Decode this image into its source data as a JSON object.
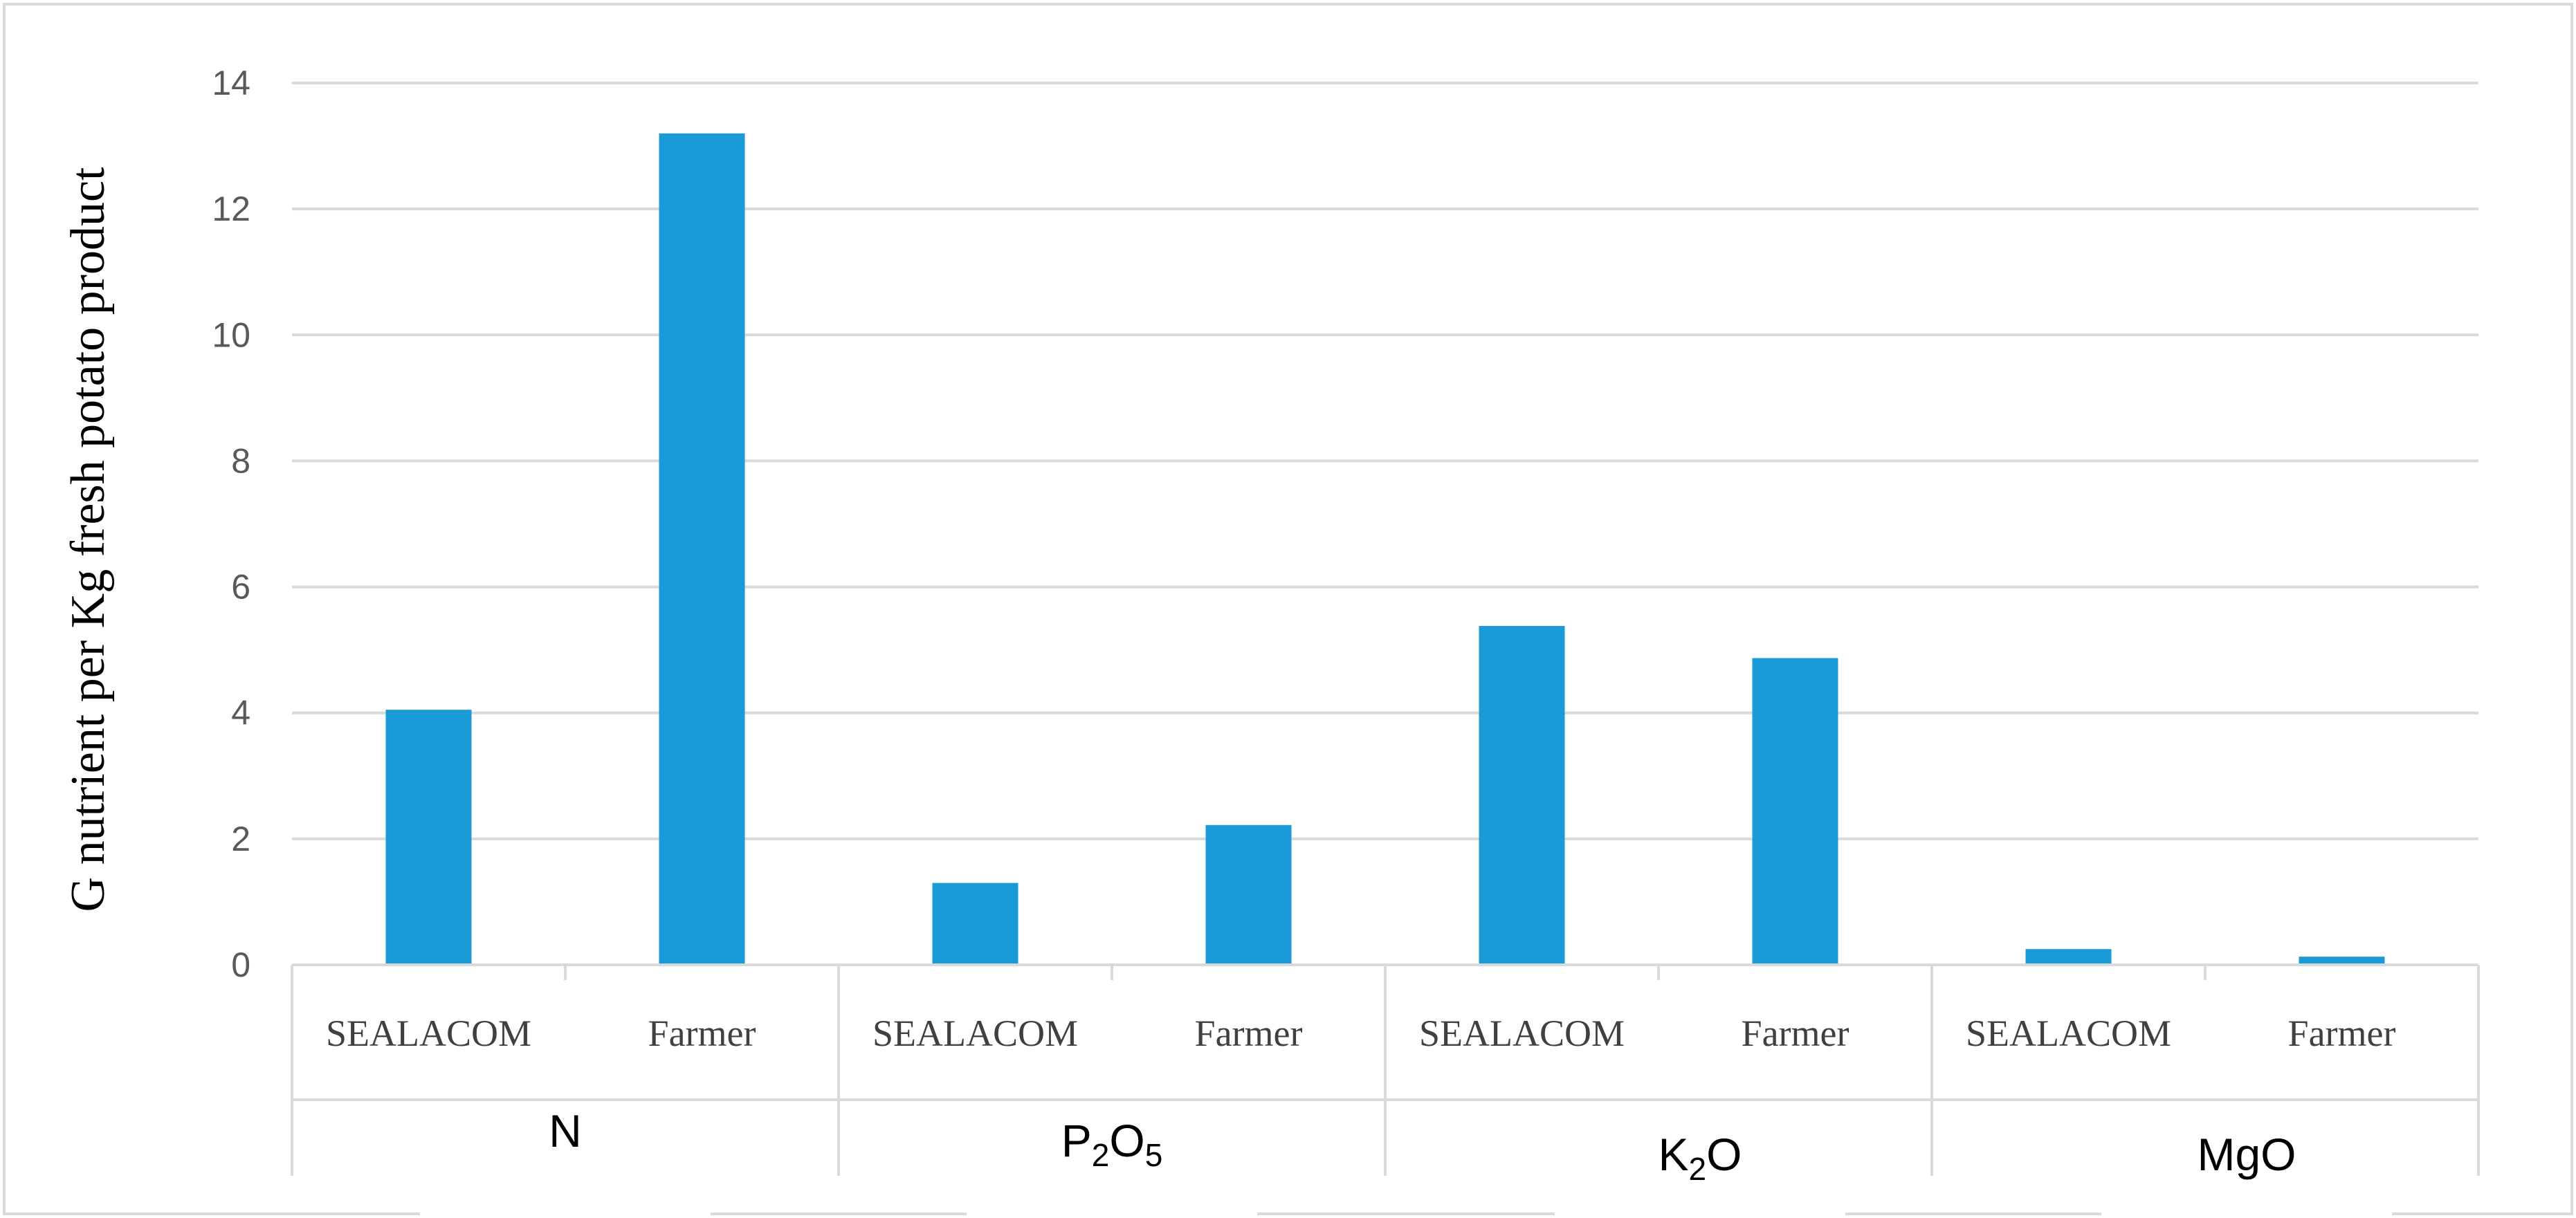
{
  "chart_data": {
    "type": "bar",
    "ylabel": "G nutrient per Kg fresh potato product",
    "ylim": [
      0,
      14
    ],
    "yticks": [
      0,
      2,
      4,
      6,
      8,
      10,
      12,
      14
    ],
    "grid": true,
    "legend": "none",
    "bar_color": "#1a9ad6",
    "groups": [
      {
        "label": "N",
        "formula": {
          "base": "N",
          "subs": []
        }
      },
      {
        "label": "P2O5",
        "formula": {
          "base": "P",
          "subs": [
            [
              "2",
              "O"
            ],
            [
              "5",
              ""
            ]
          ]
        }
      },
      {
        "label": "K2O",
        "formula": {
          "base": "K",
          "subs": [
            [
              "2",
              "O"
            ]
          ]
        }
      },
      {
        "label": "MgO",
        "formula": {
          "base": "MgO",
          "subs": []
        }
      }
    ],
    "categories": [
      "SEALACOM",
      "Farmer",
      "SEALACOM",
      "Farmer",
      "SEALACOM",
      "Farmer",
      "SEALACOM",
      "Farmer"
    ],
    "values": [
      4.05,
      13.2,
      1.3,
      2.22,
      5.38,
      4.87,
      0.25,
      0.13
    ]
  }
}
